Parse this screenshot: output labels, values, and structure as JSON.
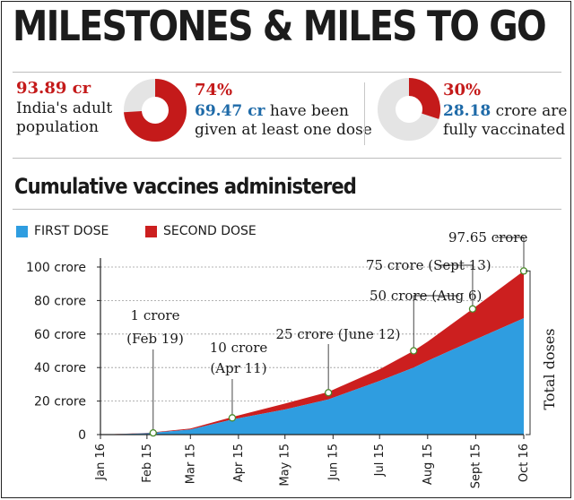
{
  "headline": "MILESTONES & MILES TO GO",
  "stats": [
    {
      "value": "93.89 cr",
      "text_line1": "India's adult",
      "text_line2": "population"
    },
    {
      "pct": "74%",
      "pct_fraction": 0.74,
      "num": "69.47 cr",
      "text_line1": "have been",
      "text_line2": "given at least one dose",
      "colors": {
        "fill": "#c41a1a",
        "track": "#e4e4e4"
      }
    },
    {
      "pct": "30%",
      "pct_fraction": 0.3,
      "num": "28.18",
      "text_line1": "crore are",
      "text_line2": "fully vaccinated",
      "colors": {
        "fill": "#c41a1a",
        "track": "#e4e4e4"
      }
    }
  ],
  "section_title": "Cumulative vaccines administered",
  "legend": {
    "first": "FIRST DOSE",
    "second": "SECOND DOSE"
  },
  "colors": {
    "first_dose": "#2f9de0",
    "second_dose": "#cc1f1f",
    "red_accent": "#c41a1a",
    "blue_accent": "#1e6aa8"
  },
  "side_label": "Total doses",
  "chart_data": {
    "type": "area",
    "stacked": true,
    "x_ticks": [
      "Jan 16",
      "Feb 15",
      "Mar 15",
      "Apr 15",
      "May 15",
      "Jun 15",
      "Jul 15",
      "Aug 15",
      "Sept 15",
      "Oct 16"
    ],
    "y_ticks": [
      "0",
      "20 crore",
      "40 crore",
      "60 crore",
      "80 crore",
      "100 crore"
    ],
    "ylim": [
      0,
      100
    ],
    "series": [
      {
        "name": "FIRST DOSE",
        "x": [
          "2021-01-16",
          "2021-02-15",
          "2021-03-15",
          "2021-04-11",
          "2021-05-15",
          "2021-06-12",
          "2021-07-15",
          "2021-08-06",
          "2021-08-15",
          "2021-09-13",
          "2021-10-16"
        ],
        "values": [
          0,
          0.8,
          3,
          9,
          15,
          21,
          32,
          40,
          44,
          56,
          69.47
        ]
      },
      {
        "name": "SECOND DOSE",
        "x": [
          "2021-01-16",
          "2021-02-15",
          "2021-03-15",
          "2021-04-11",
          "2021-05-15",
          "2021-06-12",
          "2021-07-15",
          "2021-08-06",
          "2021-08-15",
          "2021-09-13",
          "2021-10-16"
        ],
        "values": [
          0,
          0.2,
          0.6,
          1.5,
          3.5,
          4.5,
          7,
          10,
          11.5,
          19,
          28.18
        ]
      }
    ],
    "milestones": [
      {
        "date": "2021-02-19",
        "value": 1,
        "label_line1": "1 crore",
        "label_line2": "(Feb 19)"
      },
      {
        "date": "2021-04-11",
        "value": 10,
        "label_line1": "10 crore",
        "label_line2": "(Apr 11)"
      },
      {
        "date": "2021-06-12",
        "value": 25,
        "label_line1": "25 crore (June 12)",
        "label_line2": ""
      },
      {
        "date": "2021-08-06",
        "value": 50,
        "label_line1": "50 crore (Aug 6)",
        "label_line2": ""
      },
      {
        "date": "2021-09-13",
        "value": 75,
        "label_line1": "75 crore (Sept 13)",
        "label_line2": ""
      },
      {
        "date": "2021-10-16",
        "value": 97.65,
        "label_line1": "97.65 crore",
        "label_line2": ""
      }
    ]
  }
}
